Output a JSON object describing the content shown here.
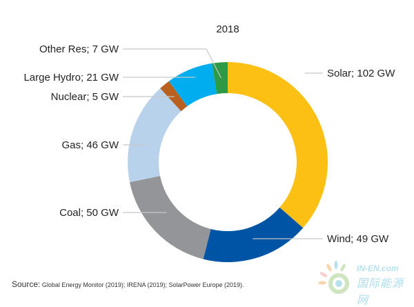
{
  "chart_data": {
    "type": "pie",
    "variant": "donut",
    "title": "2018",
    "unit": "GW",
    "slices": [
      {
        "name": "Solar",
        "value": 102,
        "label": "Solar; 102 GW",
        "color": "#fcc015"
      },
      {
        "name": "Wind",
        "value": 49,
        "label": "Wind; 49 GW",
        "color": "#0054a6"
      },
      {
        "name": "Coal",
        "value": 50,
        "label": "Coal; 50 GW",
        "color": "#939598"
      },
      {
        "name": "Gas",
        "value": 46,
        "label": "Gas; 46 GW",
        "color": "#b8d2ec"
      },
      {
        "name": "Nuclear",
        "value": 5,
        "label": "Nuclear; 5 GW",
        "color": "#b9601e"
      },
      {
        "name": "Large Hydro",
        "value": 21,
        "label": "Large Hydro; 21 GW",
        "color": "#00aeef"
      },
      {
        "name": "Other Res",
        "value": 7,
        "label": "Other Res; 7 GW",
        "color": "#2e9a45"
      }
    ],
    "start": "top",
    "direction": "clockwise",
    "legend": "none"
  },
  "source": {
    "label": "Source:",
    "text": "Global Energy Monitor (2019); IRENA (2019); SolarPower Europe (2019)."
  },
  "watermark": {
    "line1": "IN-EN.com",
    "line2": "国际能源网"
  }
}
